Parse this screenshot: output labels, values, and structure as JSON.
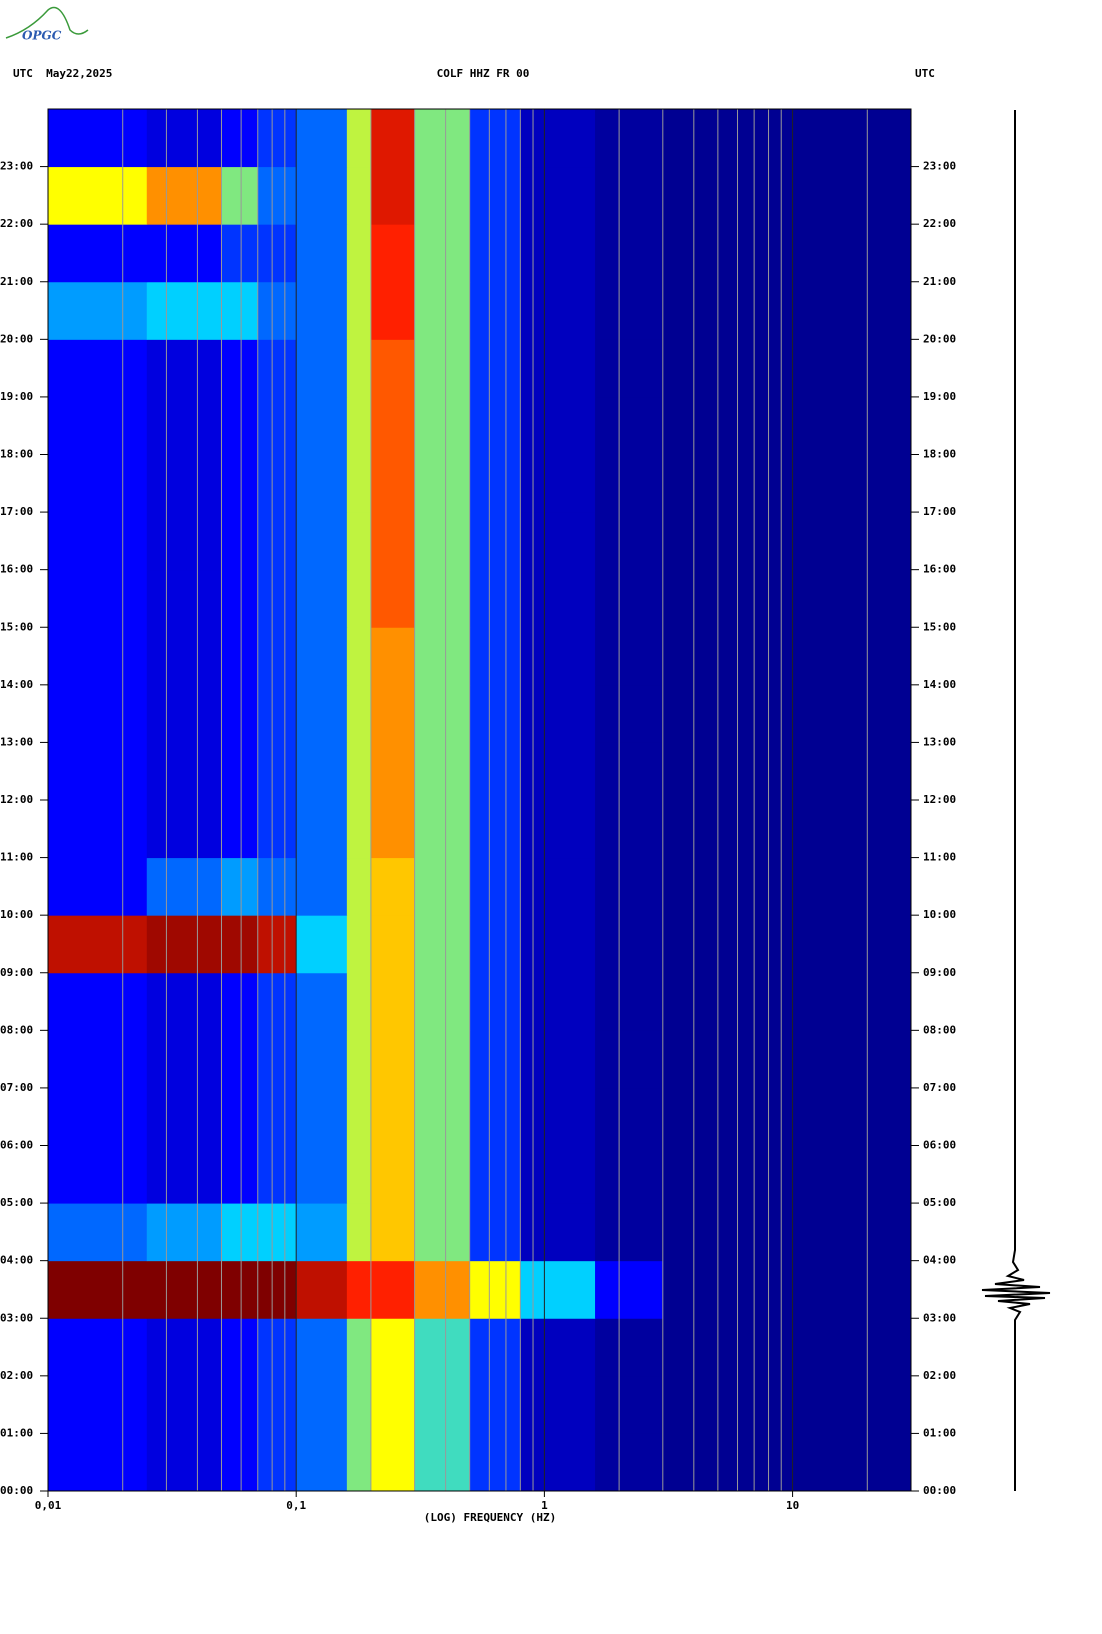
{
  "chart_data": {
    "type": "heatmap",
    "logo": "OPGC",
    "title_left": "UTC  May22,2025",
    "title": "COLF HHZ FR 00",
    "title_right": "UTC",
    "xlabel": "(LOG) FREQUENCY (HZ)",
    "xscale": "log",
    "xlim": [
      0.01,
      30
    ],
    "xticks": [
      {
        "value": 0.01,
        "label": "0,01"
      },
      {
        "value": 0.1,
        "label": "0,1"
      },
      1,
      10
    ],
    "xminor": [
      0.02,
      0.03,
      0.04,
      0.05,
      0.06,
      0.07,
      0.08,
      0.09,
      0.2,
      0.3,
      0.4,
      0.5,
      0.6,
      0.7,
      0.8,
      0.9,
      2,
      3,
      4,
      5,
      6,
      7,
      8,
      9,
      20
    ],
    "ylim": [
      0,
      24
    ],
    "yticks": [
      {
        "value": 0,
        "label": "00:00"
      },
      {
        "value": 1,
        "label": "01:00"
      },
      {
        "value": 2,
        "label": "02:00"
      },
      {
        "value": 3,
        "label": "03:00"
      },
      {
        "value": 4,
        "label": "04:00"
      },
      {
        "value": 5,
        "label": "05:00"
      },
      {
        "value": 6,
        "label": "06:00"
      },
      {
        "value": 7,
        "label": "07:00"
      },
      {
        "value": 8,
        "label": "08:00"
      },
      {
        "value": 9,
        "label": "09:00"
      },
      {
        "value": 10,
        "label": "10:00"
      },
      {
        "value": 11,
        "label": "11:00"
      },
      {
        "value": 12,
        "label": "12:00"
      },
      {
        "value": 13,
        "label": "13:00"
      },
      {
        "value": 14,
        "label": "14:00"
      },
      {
        "value": 15,
        "label": "15:00"
      },
      {
        "value": 16,
        "label": "16:00"
      },
      {
        "value": 17,
        "label": "17:00"
      },
      {
        "value": 18,
        "label": "18:00"
      },
      {
        "value": 19,
        "label": "19:00"
      },
      {
        "value": 20,
        "label": "20:00"
      },
      {
        "value": 21,
        "label": "21:00"
      },
      {
        "value": 22,
        "label": "22:00"
      },
      {
        "value": 23,
        "label": "23:00"
      }
    ],
    "bins": [
      0.01,
      0.025,
      0.05,
      0.07,
      0.1,
      0.16,
      0.2,
      0.3,
      0.5,
      0.8,
      1.6,
      3,
      30
    ],
    "times": [
      0,
      1,
      2,
      3,
      4,
      5,
      6,
      7,
      8,
      9,
      10,
      11,
      12,
      13,
      14,
      15,
      16,
      17,
      18,
      19,
      20,
      21,
      22,
      23,
      24
    ],
    "clim": [
      0,
      10
    ],
    "colors": [
      "#00007f",
      "#0000ff",
      "#00d0ff",
      "#ffff00",
      "#ff2000",
      "#7f0000"
    ],
    "z": [
      [
        2,
        1.5,
        2,
        2.5,
        3,
        5,
        6,
        4.5,
        2.5,
        1,
        0.5,
        0.3
      ],
      [
        2,
        1.5,
        2,
        2.5,
        3,
        5,
        6,
        4.5,
        2.5,
        1,
        0.5,
        0.3
      ],
      [
        2,
        1.5,
        2,
        2.5,
        3,
        5,
        6,
        4.5,
        2.5,
        1,
        0.5,
        0.3
      ],
      [
        10,
        10,
        10,
        10,
        9,
        8,
        8,
        7,
        6,
        4,
        2,
        0.3
      ],
      [
        3,
        3.5,
        4,
        4,
        3.5,
        5.5,
        6.5,
        5,
        2.5,
        1,
        0.5,
        0.3
      ],
      [
        2,
        1.5,
        2,
        2.5,
        3,
        5.5,
        6.5,
        5,
        2.5,
        1,
        0.5,
        0.3
      ],
      [
        2,
        1.5,
        2,
        2.5,
        3,
        5.5,
        6.5,
        5,
        2.5,
        1,
        0.5,
        0.3
      ],
      [
        2,
        1.5,
        2,
        2.5,
        3,
        5.5,
        6.5,
        5,
        2.5,
        1,
        0.5,
        0.3
      ],
      [
        2,
        1.5,
        2,
        2.5,
        3,
        5.5,
        6.5,
        5,
        2.5,
        1,
        0.5,
        0.3
      ],
      [
        9,
        9.5,
        9.5,
        9,
        4,
        5.5,
        6.5,
        5,
        2.5,
        1,
        0.5,
        0.3
      ],
      [
        2,
        3,
        3.5,
        3,
        3,
        5.5,
        6.5,
        5,
        2.5,
        1,
        0.5,
        0.3
      ],
      [
        2,
        1.5,
        2,
        2.5,
        3,
        5.5,
        7,
        5,
        2.5,
        1,
        0.5,
        0.3
      ],
      [
        2,
        1.5,
        2,
        2.5,
        3,
        5.5,
        7,
        5,
        2.5,
        1,
        0.5,
        0.3
      ],
      [
        2,
        1.5,
        2,
        2.5,
        3,
        5.5,
        7,
        5,
        2.5,
        1,
        0.5,
        0.3
      ],
      [
        2,
        1.5,
        2,
        2.5,
        3,
        5.5,
        7,
        5,
        2.5,
        1,
        0.5,
        0.3
      ],
      [
        2,
        1.5,
        2,
        2.5,
        3,
        5.5,
        7.5,
        5,
        2.5,
        1,
        0.5,
        0.3
      ],
      [
        2,
        1.5,
        2,
        2.5,
        3,
        5.5,
        7.5,
        5,
        2.5,
        1,
        0.5,
        0.3
      ],
      [
        2,
        1.5,
        2,
        2.5,
        3,
        5.5,
        7.5,
        5,
        2.5,
        1,
        0.5,
        0.3
      ],
      [
        2,
        1.5,
        2,
        2.5,
        3,
        5.5,
        7.5,
        5,
        2.5,
        1,
        0.5,
        0.3
      ],
      [
        2,
        1.5,
        2,
        2.5,
        3,
        5.5,
        7.5,
        5,
        2.5,
        1,
        0.5,
        0.3
      ],
      [
        3.5,
        4,
        4,
        3,
        3,
        5.5,
        8,
        5,
        2.5,
        1,
        0.5,
        0.3
      ],
      [
        2,
        2,
        2.5,
        2.5,
        3,
        5.5,
        8,
        5,
        2.5,
        1,
        0.5,
        0.3
      ],
      [
        6,
        7,
        5,
        3,
        3,
        5.5,
        8.5,
        5,
        2.5,
        1,
        0.5,
        0.3
      ],
      [
        2,
        1.5,
        2,
        2.5,
        3,
        5.5,
        8.5,
        5,
        2.5,
        1,
        0.5,
        0.3
      ]
    ]
  }
}
